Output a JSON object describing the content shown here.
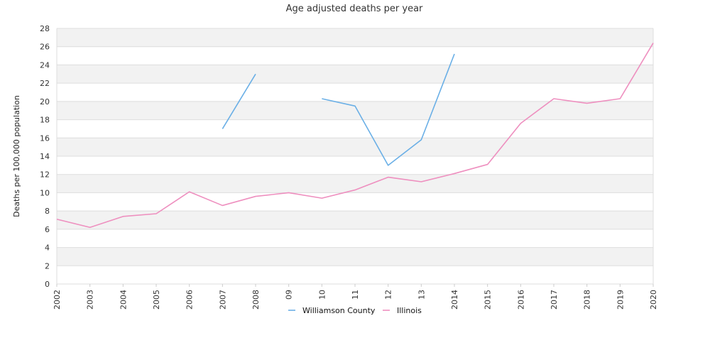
{
  "chart_data": {
    "type": "line",
    "title": "Age adjusted deaths per year",
    "xlabel": "",
    "ylabel": "Deaths per 100,000 population",
    "categories": [
      "2002",
      "2003",
      "2004",
      "2005",
      "2006",
      "2007",
      "2008",
      "09",
      "10",
      "11",
      "12",
      "13",
      "2014",
      "2015",
      "2016",
      "2017",
      "2018",
      "2019",
      "2020"
    ],
    "ylim": [
      0,
      28
    ],
    "yticks": [
      0,
      2,
      4,
      6,
      8,
      10,
      12,
      14,
      16,
      18,
      20,
      22,
      24,
      26,
      28
    ],
    "grid": "horizontal banded",
    "legend_position": "bottom",
    "series": [
      {
        "name": "Williamson County",
        "color": "#6aafe6",
        "values": [
          null,
          null,
          null,
          null,
          null,
          17.0,
          23.0,
          null,
          20.3,
          19.5,
          13.0,
          15.8,
          25.2,
          null,
          null,
          null,
          null,
          null,
          null
        ]
      },
      {
        "name": "Illinois",
        "color": "#ee8fbf",
        "values": [
          7.1,
          6.2,
          7.4,
          7.7,
          10.1,
          8.6,
          9.6,
          10.0,
          9.4,
          10.3,
          11.7,
          11.2,
          12.1,
          13.1,
          17.6,
          20.3,
          19.8,
          20.3,
          26.4
        ]
      }
    ]
  }
}
